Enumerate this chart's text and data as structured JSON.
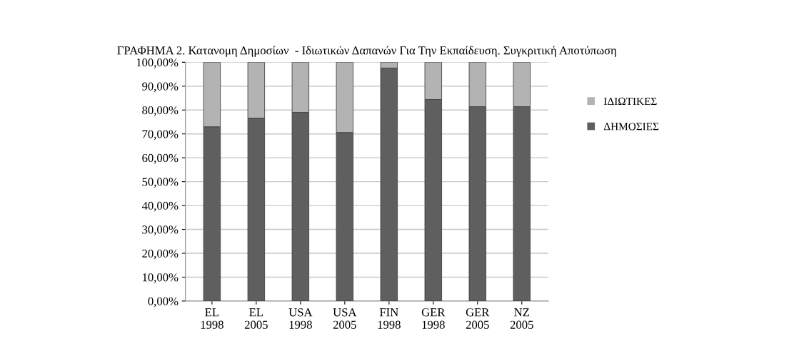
{
  "chart_data": {
    "type": "bar",
    "stacked": true,
    "title": "ΓΡΑΦΗΜΑ 2. Κατανομη Δημοσίων  - Ιδιωτικών Δαπανών Για Την Εκπαίδευση. Συγκριτική Αποτύπωση",
    "categories": [
      "EL 1998",
      "EL 2005",
      "USA 1998",
      "USA 2005",
      "FIN 1998",
      "GER 1998",
      "GER 2005",
      "NZ 2005"
    ],
    "series": [
      {
        "name": "ΔΗΜΟΣΙΕΣ",
        "color": "#5f5f5f",
        "values": [
          73.0,
          76.6,
          79.0,
          70.6,
          97.6,
          84.4,
          81.4,
          81.4
        ]
      },
      {
        "name": "ΙΔΙΩΤΙΚΕΣ",
        "color": "#b3b3b3",
        "values": [
          27.0,
          23.4,
          21.0,
          29.4,
          2.4,
          15.6,
          18.6,
          18.6
        ]
      }
    ],
    "ylim": [
      0,
      100
    ],
    "yticks": [
      {
        "value": 0,
        "label": "0,00%"
      },
      {
        "value": 10,
        "label": "10,00%"
      },
      {
        "value": 20,
        "label": "20,00%"
      },
      {
        "value": 30,
        "label": "30,00%"
      },
      {
        "value": 40,
        "label": "40,00%"
      },
      {
        "value": 50,
        "label": "50,00%"
      },
      {
        "value": 60,
        "label": "60,00%"
      },
      {
        "value": 70,
        "label": "70,00%"
      },
      {
        "value": 80,
        "label": "80,00%"
      },
      {
        "value": 90,
        "label": "90,00%"
      },
      {
        "value": 100,
        "label": "100,00%"
      }
    ],
    "grid": "y",
    "legend": "right"
  }
}
